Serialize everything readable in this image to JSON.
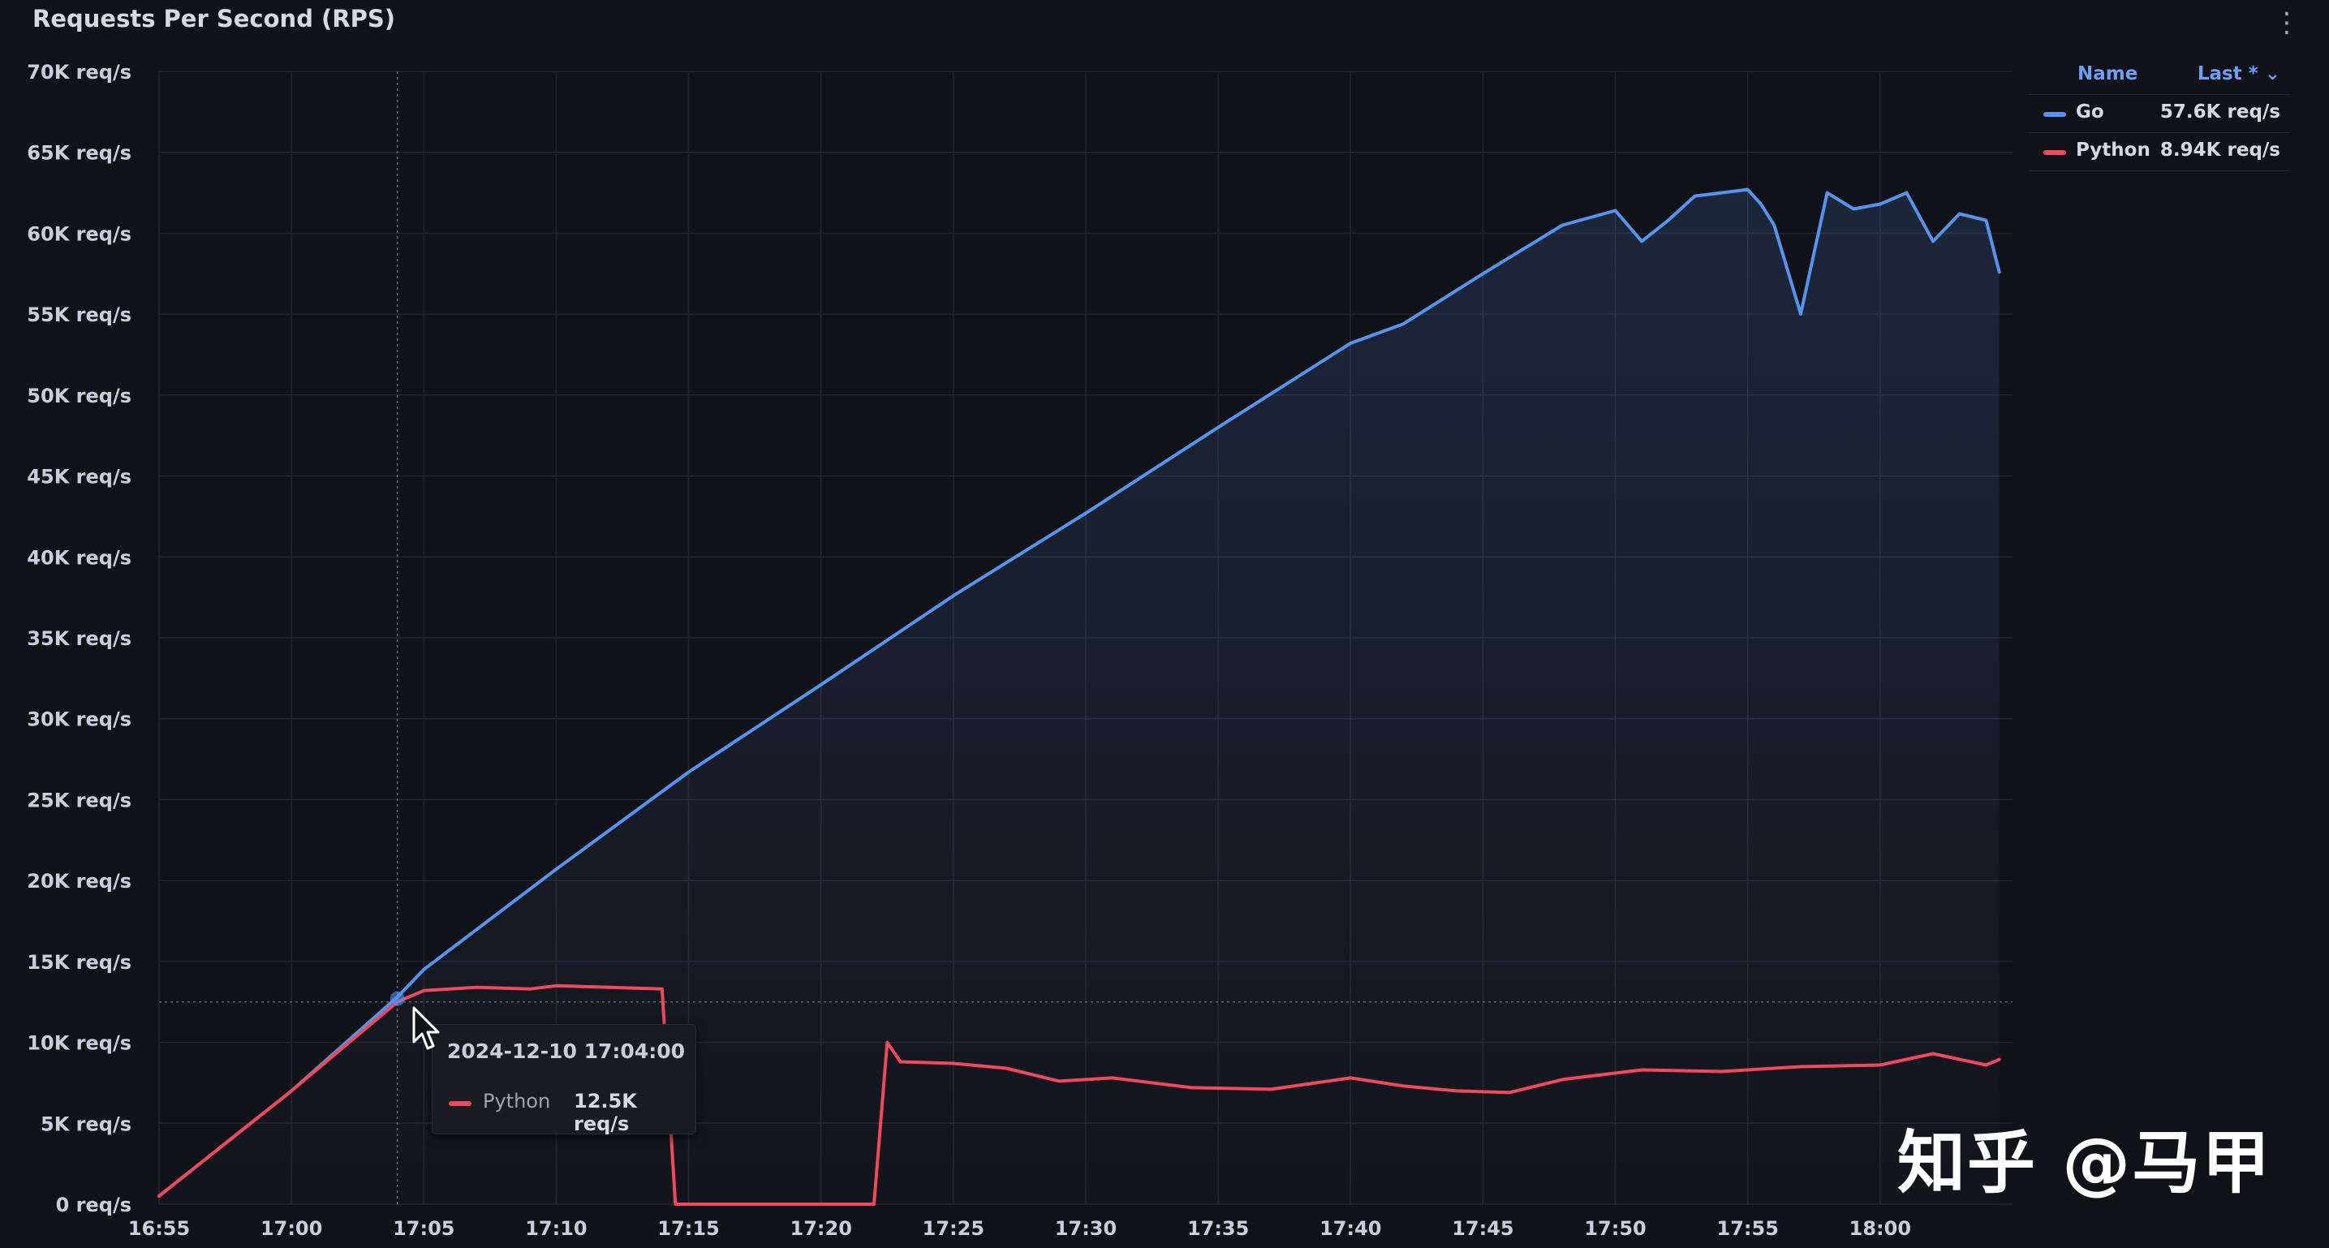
{
  "panel": {
    "title": "Requests Per Second (RPS)",
    "menu_icon": "vertical-ellipsis-icon"
  },
  "legend": {
    "name_header": "Name",
    "last_header": "Last * ⌄",
    "items": [
      {
        "name": "Go",
        "last": "57.6K req/s",
        "color": "#5794f2"
      },
      {
        "name": "Python",
        "last": "8.94K req/s",
        "color": "#f2495c"
      }
    ]
  },
  "tooltip": {
    "time": "2024-12-10 17:04:00",
    "series": "Python",
    "value": "12.5K req/s",
    "color": "#f2495c"
  },
  "watermark": "知乎 @马甲",
  "chart_data": {
    "type": "area",
    "title": "Requests Per Second (RPS)",
    "xlabel": "",
    "ylabel": "",
    "ylim": [
      0,
      70000
    ],
    "y_ticks": [
      0,
      5000,
      10000,
      15000,
      20000,
      25000,
      30000,
      35000,
      40000,
      45000,
      50000,
      55000,
      60000,
      65000,
      70000
    ],
    "y_tick_labels": [
      "0 req/s",
      "5K req/s",
      "10K req/s",
      "15K req/s",
      "20K req/s",
      "25K req/s",
      "30K req/s",
      "35K req/s",
      "40K req/s",
      "45K req/s",
      "50K req/s",
      "55K req/s",
      "60K req/s",
      "65K req/s",
      "70K req/s"
    ],
    "x_range": [
      "16:55",
      "18:05"
    ],
    "x_ticks": [
      "16:55",
      "17:00",
      "17:05",
      "17:10",
      "17:15",
      "17:20",
      "17:25",
      "17:30",
      "17:35",
      "17:40",
      "17:45",
      "17:50",
      "17:55",
      "18:00"
    ],
    "grid": true,
    "legend_position": "right",
    "hover_time": "17:04",
    "series": [
      {
        "name": "Go",
        "color": "#5794f2",
        "fill": true,
        "points": [
          [
            "16:55",
            500
          ],
          [
            "17:00",
            7000
          ],
          [
            "17:04",
            12800
          ],
          [
            "17:05",
            14500
          ],
          [
            "17:10",
            20700
          ],
          [
            "17:15",
            26700
          ],
          [
            "17:20",
            32100
          ],
          [
            "17:25",
            37600
          ],
          [
            "17:30",
            42700
          ],
          [
            "17:35",
            48000
          ],
          [
            "17:40",
            53200
          ],
          [
            "17:42",
            54400
          ],
          [
            "17:45",
            57500
          ],
          [
            "17:48",
            60500
          ],
          [
            "17:50",
            61400
          ],
          [
            "17:51",
            59500
          ],
          [
            "17:52",
            60800
          ],
          [
            "17:53",
            62300
          ],
          [
            "17:54",
            62500
          ],
          [
            "17:55",
            62700
          ],
          [
            "17:55:30",
            61800
          ],
          [
            "17:56",
            60500
          ],
          [
            "17:57",
            55000
          ],
          [
            "17:58",
            62500
          ],
          [
            "17:59",
            61500
          ],
          [
            "18:00",
            61800
          ],
          [
            "18:01",
            62500
          ],
          [
            "18:02",
            59500
          ],
          [
            "18:03",
            61200
          ],
          [
            "18:04",
            60800
          ],
          [
            "18:04:30",
            57600
          ]
        ]
      },
      {
        "name": "Python",
        "color": "#f2495c",
        "fill": false,
        "points": [
          [
            "16:55",
            500
          ],
          [
            "17:00",
            7000
          ],
          [
            "17:04",
            12500
          ],
          [
            "17:05",
            13200
          ],
          [
            "17:07",
            13400
          ],
          [
            "17:09",
            13300
          ],
          [
            "17:10",
            13500
          ],
          [
            "17:12",
            13400
          ],
          [
            "17:14",
            13300
          ],
          [
            "17:14:30",
            0
          ],
          [
            "17:22",
            0
          ],
          [
            "17:22:30",
            10000
          ],
          [
            "17:23",
            8800
          ],
          [
            "17:25",
            8700
          ],
          [
            "17:27",
            8400
          ],
          [
            "17:29",
            7600
          ],
          [
            "17:31",
            7800
          ],
          [
            "17:34",
            7200
          ],
          [
            "17:37",
            7100
          ],
          [
            "17:40",
            7800
          ],
          [
            "17:42",
            7300
          ],
          [
            "17:44",
            7000
          ],
          [
            "17:46",
            6900
          ],
          [
            "17:48",
            7700
          ],
          [
            "17:51",
            8300
          ],
          [
            "17:54",
            8200
          ],
          [
            "17:57",
            8500
          ],
          [
            "18:00",
            8600
          ],
          [
            "18:02",
            9300
          ],
          [
            "18:04",
            8600
          ],
          [
            "18:04:30",
            8940
          ]
        ]
      }
    ]
  }
}
